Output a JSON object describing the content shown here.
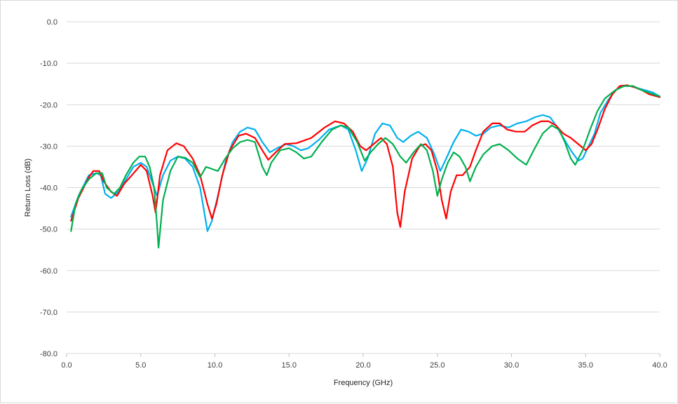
{
  "chart_data": {
    "type": "line",
    "title": "",
    "xlabel": "Frequency (GHz)",
    "ylabel": "Return Loss (dB)",
    "xlim": [
      0,
      40
    ],
    "ylim": [
      -80,
      0
    ],
    "x_ticks": [
      "0.0",
      "5.0",
      "10.0",
      "15.0",
      "20.0",
      "25.0",
      "30.0",
      "35.0",
      "40.0"
    ],
    "y_ticks": [
      "0.0",
      "-10.0",
      "-20.0",
      "-30.0",
      "-40.0",
      "-50.0",
      "-60.0",
      "-70.0",
      "-80.0"
    ],
    "grid": "horizontal",
    "legend": "none",
    "series": [
      {
        "color": "#00b0f0",
        "points": [
          [
            0.3,
            -47
          ],
          [
            0.8,
            -42
          ],
          [
            1.5,
            -37
          ],
          [
            2.0,
            -36.5
          ],
          [
            2.3,
            -37
          ],
          [
            2.6,
            -41.5
          ],
          [
            3.0,
            -42.5
          ],
          [
            3.5,
            -41
          ],
          [
            4.0,
            -38
          ],
          [
            4.5,
            -35
          ],
          [
            5.0,
            -34
          ],
          [
            5.4,
            -35
          ],
          [
            5.8,
            -39
          ],
          [
            6.1,
            -42
          ],
          [
            6.5,
            -37
          ],
          [
            7.0,
            -33.5
          ],
          [
            7.5,
            -32.5
          ],
          [
            8.0,
            -33
          ],
          [
            8.5,
            -35
          ],
          [
            9.0,
            -40
          ],
          [
            9.5,
            -50.5
          ],
          [
            9.8,
            -48
          ],
          [
            10.2,
            -42
          ],
          [
            10.7,
            -34
          ],
          [
            11.2,
            -29
          ],
          [
            11.7,
            -26.5
          ],
          [
            12.2,
            -25.5
          ],
          [
            12.7,
            -26
          ],
          [
            13.2,
            -29
          ],
          [
            13.7,
            -31.5
          ],
          [
            14.2,
            -30.5
          ],
          [
            14.8,
            -29.5
          ],
          [
            15.3,
            -30
          ],
          [
            15.8,
            -31
          ],
          [
            16.3,
            -30.5
          ],
          [
            17.0,
            -28.5
          ],
          [
            17.7,
            -26
          ],
          [
            18.5,
            -25
          ],
          [
            19.0,
            -26
          ],
          [
            19.5,
            -31
          ],
          [
            19.9,
            -36
          ],
          [
            20.3,
            -33
          ],
          [
            20.8,
            -27
          ],
          [
            21.3,
            -24.5
          ],
          [
            21.8,
            -25
          ],
          [
            22.3,
            -28
          ],
          [
            22.7,
            -29
          ],
          [
            23.2,
            -27.5
          ],
          [
            23.7,
            -26.5
          ],
          [
            24.3,
            -28
          ],
          [
            24.8,
            -32
          ],
          [
            25.2,
            -36
          ],
          [
            25.6,
            -33
          ],
          [
            26.1,
            -29
          ],
          [
            26.6,
            -26
          ],
          [
            27.1,
            -26.5
          ],
          [
            27.6,
            -27.5
          ],
          [
            28.1,
            -27
          ],
          [
            28.6,
            -25.5
          ],
          [
            29.2,
            -25
          ],
          [
            29.8,
            -25.5
          ],
          [
            30.4,
            -24.5
          ],
          [
            31.0,
            -24
          ],
          [
            31.6,
            -23
          ],
          [
            32.1,
            -22.5
          ],
          [
            32.6,
            -23
          ],
          [
            33.0,
            -25
          ],
          [
            33.5,
            -28
          ],
          [
            34.0,
            -31
          ],
          [
            34.5,
            -33.5
          ],
          [
            34.8,
            -33
          ],
          [
            35.2,
            -30
          ],
          [
            35.6,
            -27
          ],
          [
            36.0,
            -22
          ],
          [
            36.5,
            -19
          ],
          [
            37.0,
            -16.5
          ],
          [
            37.5,
            -15.5
          ],
          [
            38.0,
            -15.5
          ],
          [
            38.5,
            -16
          ],
          [
            39.0,
            -16.5
          ],
          [
            39.5,
            -17
          ],
          [
            40.0,
            -18
          ]
        ]
      },
      {
        "color": "#ff0000",
        "points": [
          [
            0.3,
            -48
          ],
          [
            0.8,
            -42.5
          ],
          [
            1.5,
            -37.5
          ],
          [
            1.8,
            -36
          ],
          [
            2.2,
            -36
          ],
          [
            2.5,
            -38.5
          ],
          [
            3.0,
            -41
          ],
          [
            3.4,
            -42
          ],
          [
            3.9,
            -39
          ],
          [
            4.4,
            -37
          ],
          [
            5.0,
            -34.5
          ],
          [
            5.4,
            -36
          ],
          [
            5.8,
            -42
          ],
          [
            6.0,
            -46
          ],
          [
            6.3,
            -37
          ],
          [
            6.8,
            -31
          ],
          [
            7.4,
            -29.3
          ],
          [
            7.9,
            -30
          ],
          [
            8.5,
            -33
          ],
          [
            9.0,
            -37
          ],
          [
            9.5,
            -44
          ],
          [
            9.8,
            -47.5
          ],
          [
            10.1,
            -44
          ],
          [
            10.5,
            -37
          ],
          [
            11.0,
            -31
          ],
          [
            11.6,
            -27.5
          ],
          [
            12.1,
            -27
          ],
          [
            12.7,
            -28
          ],
          [
            13.2,
            -31
          ],
          [
            13.6,
            -33.3
          ],
          [
            14.1,
            -31.5
          ],
          [
            14.7,
            -29.5
          ],
          [
            15.5,
            -29.3
          ],
          [
            16.5,
            -28
          ],
          [
            17.4,
            -25.5
          ],
          [
            18.1,
            -24
          ],
          [
            18.7,
            -24.5
          ],
          [
            19.3,
            -26.5
          ],
          [
            19.8,
            -30
          ],
          [
            20.2,
            -31
          ],
          [
            20.7,
            -29.5
          ],
          [
            21.2,
            -28
          ],
          [
            21.6,
            -29.5
          ],
          [
            22.0,
            -35
          ],
          [
            22.3,
            -46
          ],
          [
            22.5,
            -49.5
          ],
          [
            22.8,
            -41
          ],
          [
            23.3,
            -33
          ],
          [
            23.8,
            -30
          ],
          [
            24.2,
            -29.5
          ],
          [
            24.6,
            -31
          ],
          [
            25.0,
            -36
          ],
          [
            25.3,
            -43
          ],
          [
            25.6,
            -47.5
          ],
          [
            25.9,
            -41
          ],
          [
            26.3,
            -37
          ],
          [
            26.7,
            -37
          ],
          [
            27.2,
            -35
          ],
          [
            27.6,
            -31
          ],
          [
            28.1,
            -26.5
          ],
          [
            28.7,
            -24.5
          ],
          [
            29.2,
            -24.5
          ],
          [
            29.7,
            -26
          ],
          [
            30.3,
            -26.5
          ],
          [
            30.9,
            -26.5
          ],
          [
            31.4,
            -25
          ],
          [
            32.0,
            -24
          ],
          [
            32.5,
            -24
          ],
          [
            33.0,
            -25
          ],
          [
            33.5,
            -27
          ],
          [
            34.0,
            -28
          ],
          [
            34.5,
            -29.5
          ],
          [
            35.0,
            -31
          ],
          [
            35.4,
            -29.5
          ],
          [
            35.8,
            -26
          ],
          [
            36.3,
            -21
          ],
          [
            36.8,
            -17.5
          ],
          [
            37.3,
            -15.5
          ],
          [
            37.8,
            -15.3
          ],
          [
            38.3,
            -15.8
          ],
          [
            38.8,
            -16.5
          ],
          [
            39.3,
            -17.5
          ],
          [
            40.0,
            -18.2
          ]
        ]
      },
      {
        "color": "#00b050",
        "points": [
          [
            0.3,
            -50.5
          ],
          [
            0.6,
            -44
          ],
          [
            1.0,
            -40.5
          ],
          [
            1.5,
            -38
          ],
          [
            2.0,
            -36.5
          ],
          [
            2.4,
            -36.5
          ],
          [
            2.7,
            -40
          ],
          [
            3.2,
            -41.5
          ],
          [
            3.6,
            -40
          ],
          [
            4.0,
            -37
          ],
          [
            4.5,
            -34
          ],
          [
            4.9,
            -32.5
          ],
          [
            5.3,
            -32.5
          ],
          [
            5.6,
            -35
          ],
          [
            5.9,
            -40
          ],
          [
            6.1,
            -49
          ],
          [
            6.2,
            -54.5
          ],
          [
            6.5,
            -43
          ],
          [
            7.0,
            -36
          ],
          [
            7.5,
            -32.5
          ],
          [
            8.0,
            -32.8
          ],
          [
            8.5,
            -34
          ],
          [
            9.0,
            -37.5
          ],
          [
            9.4,
            -35
          ],
          [
            9.8,
            -35.5
          ],
          [
            10.2,
            -36
          ],
          [
            10.7,
            -33
          ],
          [
            11.2,
            -30.5
          ],
          [
            11.7,
            -29
          ],
          [
            12.2,
            -28.5
          ],
          [
            12.7,
            -29
          ],
          [
            13.2,
            -35
          ],
          [
            13.5,
            -37
          ],
          [
            13.8,
            -34
          ],
          [
            14.4,
            -31
          ],
          [
            15.0,
            -30.5
          ],
          [
            15.5,
            -31.5
          ],
          [
            16.0,
            -33
          ],
          [
            16.5,
            -32.5
          ],
          [
            17.2,
            -29
          ],
          [
            17.9,
            -26
          ],
          [
            18.5,
            -25
          ],
          [
            19.0,
            -25.5
          ],
          [
            19.6,
            -29
          ],
          [
            20.1,
            -33.5
          ],
          [
            20.5,
            -31.5
          ],
          [
            21.0,
            -29.5
          ],
          [
            21.5,
            -28
          ],
          [
            22.0,
            -29.5
          ],
          [
            22.5,
            -32.5
          ],
          [
            22.9,
            -34
          ],
          [
            23.4,
            -31.5
          ],
          [
            23.9,
            -29.5
          ],
          [
            24.3,
            -31
          ],
          [
            24.7,
            -36
          ],
          [
            25.0,
            -42
          ],
          [
            25.3,
            -38
          ],
          [
            25.7,
            -34
          ],
          [
            26.1,
            -31.5
          ],
          [
            26.5,
            -32.5
          ],
          [
            26.9,
            -35
          ],
          [
            27.2,
            -38.5
          ],
          [
            27.6,
            -35
          ],
          [
            28.1,
            -32
          ],
          [
            28.7,
            -30
          ],
          [
            29.2,
            -29.5
          ],
          [
            29.8,
            -31
          ],
          [
            30.4,
            -33
          ],
          [
            31.0,
            -34.5
          ],
          [
            31.5,
            -31
          ],
          [
            32.1,
            -27
          ],
          [
            32.7,
            -25
          ],
          [
            33.2,
            -26
          ],
          [
            33.6,
            -29
          ],
          [
            34.0,
            -33
          ],
          [
            34.3,
            -34.5
          ],
          [
            34.8,
            -31
          ],
          [
            35.3,
            -26
          ],
          [
            35.8,
            -21.5
          ],
          [
            36.3,
            -18.5
          ],
          [
            37.0,
            -16.5
          ],
          [
            37.6,
            -15.5
          ],
          [
            38.2,
            -15.5
          ],
          [
            38.8,
            -16.5
          ],
          [
            39.4,
            -17.3
          ],
          [
            40.0,
            -18
          ]
        ]
      }
    ]
  }
}
